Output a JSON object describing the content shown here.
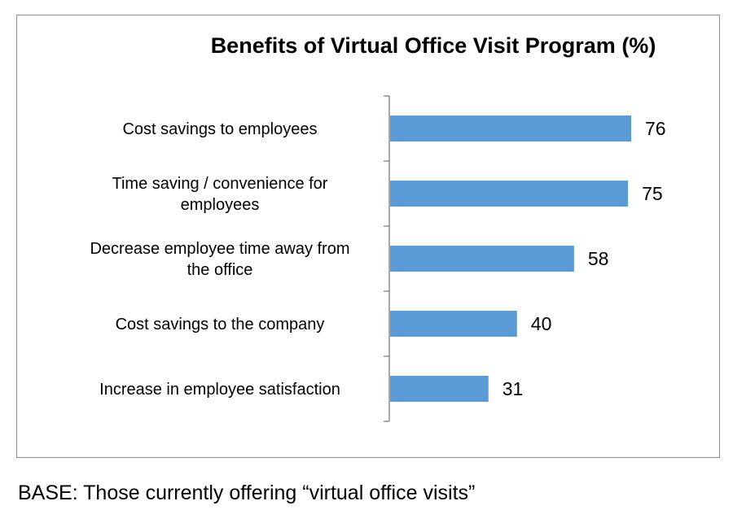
{
  "chart_data": {
    "type": "bar",
    "orientation": "horizontal",
    "title": "Benefits of Virtual Office Visit Program  (%)",
    "categories": [
      "Cost savings to employees",
      "Time saving / convenience for employees",
      "Decrease employee time away from the office",
      "Cost savings to the company",
      "Increase in employee satisfaction"
    ],
    "category_lines": [
      [
        "Cost savings to employees"
      ],
      [
        "Time saving / convenience for",
        "employees"
      ],
      [
        "Decrease employee time away from",
        "the office"
      ],
      [
        "Cost savings to the company"
      ],
      [
        "Increase in employee satisfaction"
      ]
    ],
    "values": [
      76,
      75,
      58,
      40,
      31
    ],
    "data_labels": [
      "76",
      "75",
      "58",
      "40",
      "31"
    ],
    "xlim": [
      0,
      100
    ],
    "bar_color": "#5b9bd5",
    "grid": false,
    "legend": "none"
  },
  "footnote": "BASE: Those currently offering “virtual office visits”"
}
